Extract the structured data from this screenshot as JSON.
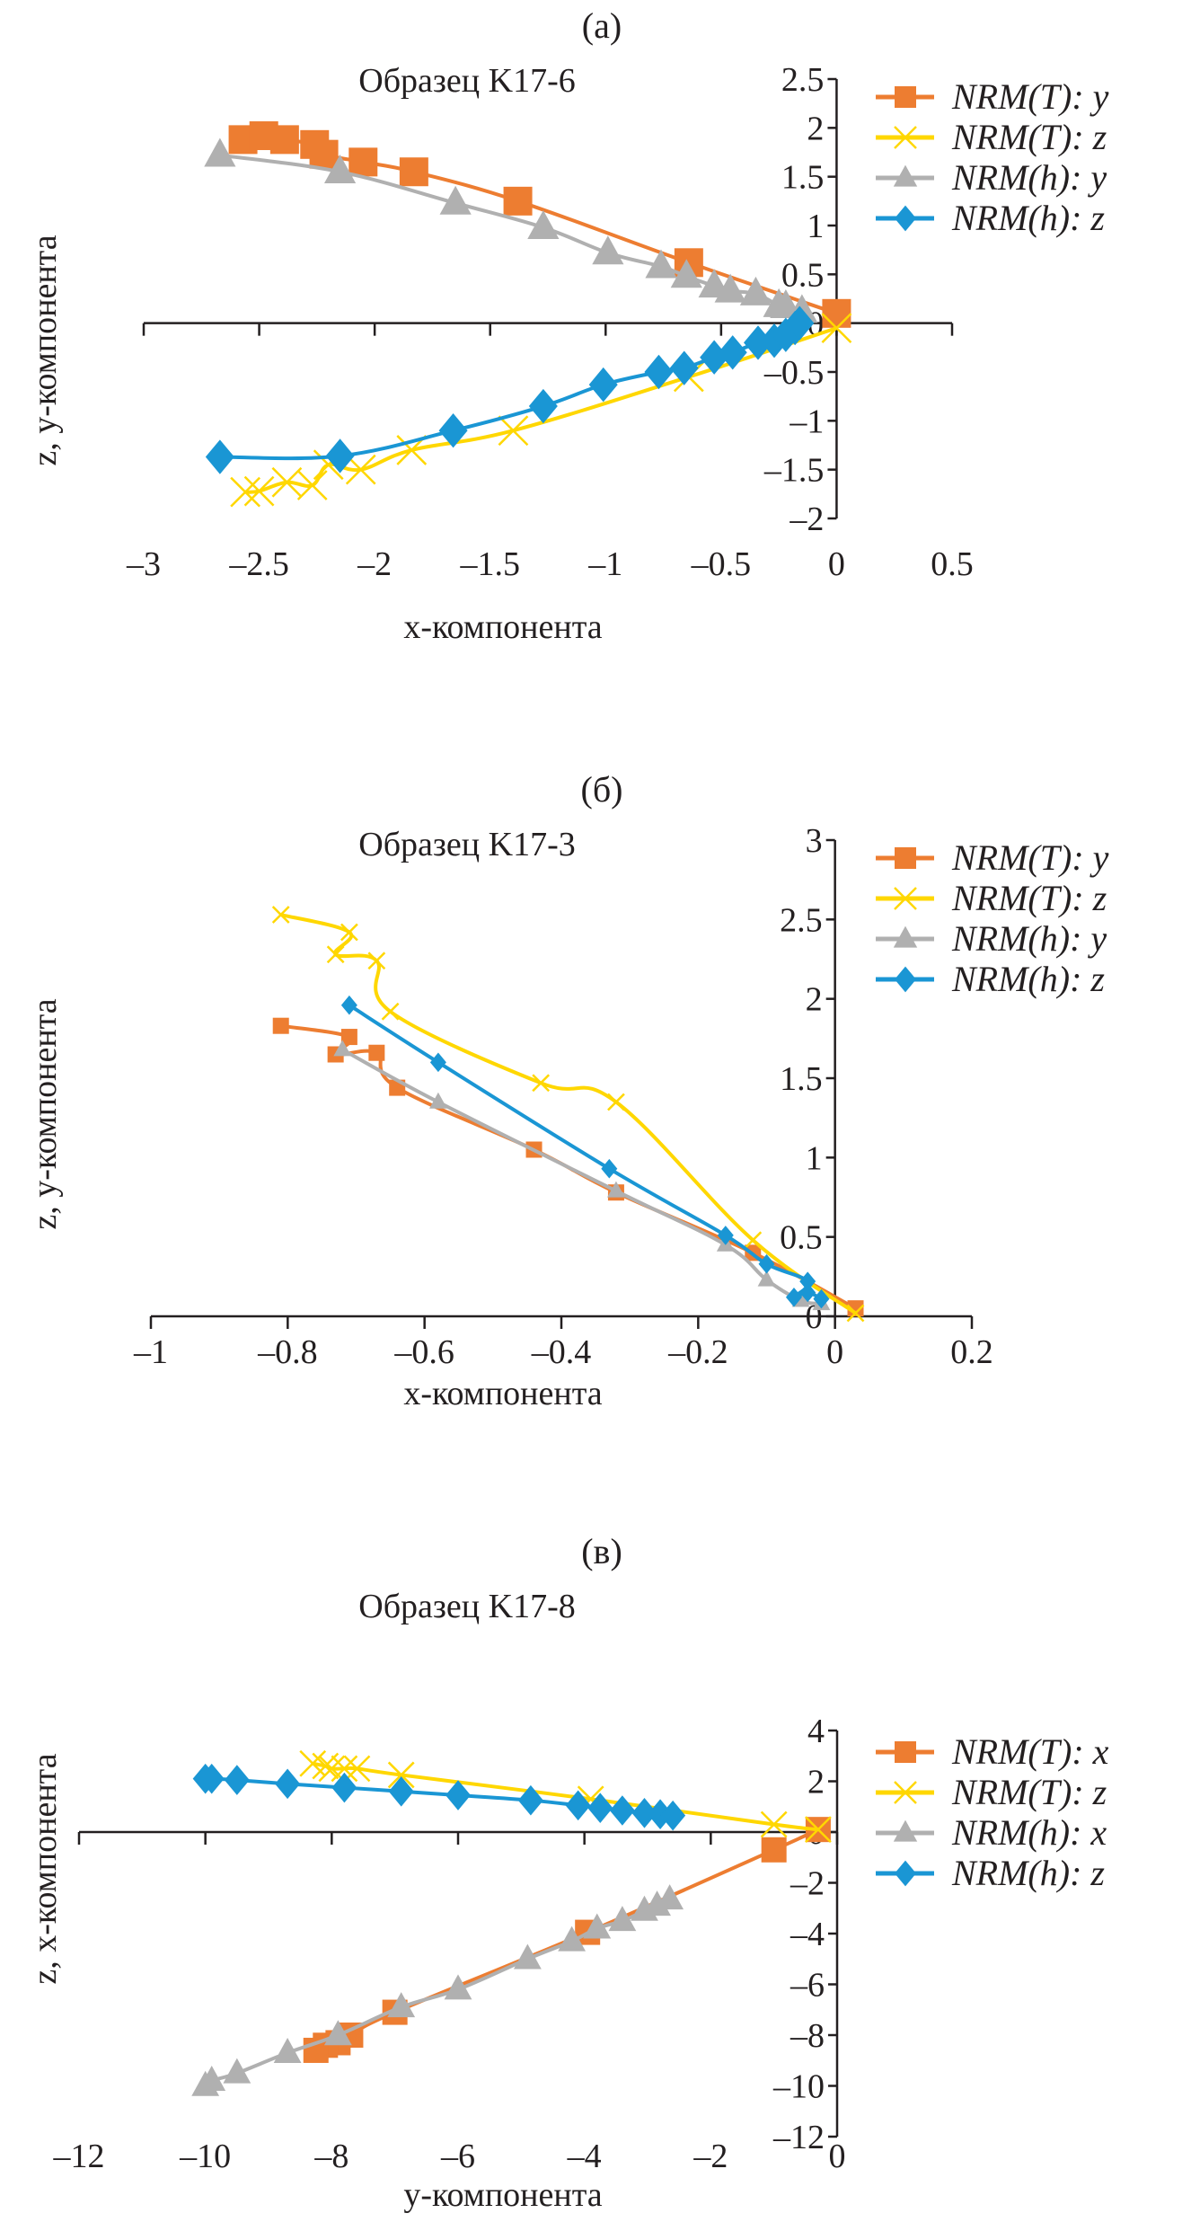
{
  "colors": {
    "NRM_T_first": "#ed7d31",
    "NRM_T_z": "#ffd700",
    "NRM_h_first": "#b0b0b0",
    "NRM_h_z": "#1a96d4",
    "axis": "#231f20"
  },
  "chart_data": [
    {
      "type": "line",
      "panel_label": "(а)",
      "title": "Образец K17-6",
      "xlabel": "x-компонента",
      "ylabel": "z, y-компонента",
      "xlim": [
        -3,
        0.5
      ],
      "ylim": [
        -2,
        2.5
      ],
      "x_ticks": [
        -3,
        -2.5,
        -2,
        -1.5,
        -1,
        -0.5,
        0,
        0.5
      ],
      "x_tick_labels": [
        "–3",
        "–2.5",
        "–2",
        "–1.5",
        "–1",
        "–0.5",
        "0",
        "0.5"
      ],
      "y_ticks": [
        -2,
        -1.5,
        -1,
        -0.5,
        0,
        0.5,
        1,
        1.5,
        2,
        2.5
      ],
      "y_tick_labels": [
        "–2",
        "–1.5",
        "–1",
        "–0.5",
        "0",
        "0.5",
        "1",
        "1.5",
        "2",
        "2.5"
      ],
      "grid": false,
      "legend_position": "top-right",
      "series": [
        {
          "name": "NRM(T): y",
          "marker": "square",
          "color_key": "NRM_T_first",
          "points": [
            [
              -2.57,
              1.88
            ],
            [
              -2.48,
              1.92
            ],
            [
              -2.39,
              1.88
            ],
            [
              -2.26,
              1.83
            ],
            [
              -2.22,
              1.73
            ],
            [
              -2.05,
              1.65
            ],
            [
              -1.83,
              1.55
            ],
            [
              -1.38,
              1.25
            ],
            [
              -0.64,
              0.62
            ],
            [
              0,
              0.1
            ]
          ]
        },
        {
          "name": "NRM(T): z",
          "marker": "cross",
          "color_key": "NRM_T_z",
          "points": [
            [
              -2.56,
              -1.73
            ],
            [
              -2.5,
              -1.72
            ],
            [
              -2.38,
              -1.63
            ],
            [
              -2.27,
              -1.66
            ],
            [
              -2.2,
              -1.45
            ],
            [
              -2.06,
              -1.5
            ],
            [
              -1.84,
              -1.3
            ],
            [
              -1.4,
              -1.1
            ],
            [
              -0.64,
              -0.55
            ],
            [
              0,
              -0.05
            ]
          ]
        },
        {
          "name": "NRM(h): y",
          "marker": "triangle",
          "color_key": "NRM_h_first",
          "points": [
            [
              -2.67,
              1.72
            ],
            [
              -2.15,
              1.55
            ],
            [
              -1.65,
              1.23
            ],
            [
              -1.27,
              0.98
            ],
            [
              -0.99,
              0.72
            ],
            [
              -0.76,
              0.58
            ],
            [
              -0.65,
              0.48
            ],
            [
              -0.53,
              0.38
            ],
            [
              -0.46,
              0.33
            ],
            [
              -0.35,
              0.3
            ],
            [
              -0.25,
              0.18
            ],
            [
              -0.22,
              0.17
            ],
            [
              -0.15,
              0.12
            ]
          ]
        },
        {
          "name": "NRM(h): z",
          "marker": "diamond",
          "color_key": "NRM_h_z",
          "points": [
            [
              -2.67,
              -1.37
            ],
            [
              -2.15,
              -1.36
            ],
            [
              -1.66,
              -1.1
            ],
            [
              -1.27,
              -0.85
            ],
            [
              -1.01,
              -0.63
            ],
            [
              -0.77,
              -0.5
            ],
            [
              -0.66,
              -0.46
            ],
            [
              -0.53,
              -0.35
            ],
            [
              -0.45,
              -0.3
            ],
            [
              -0.34,
              -0.2
            ],
            [
              -0.27,
              -0.18
            ],
            [
              -0.22,
              -0.12
            ],
            [
              -0.18,
              -0.05
            ],
            [
              -0.16,
              0
            ]
          ]
        }
      ]
    },
    {
      "type": "line",
      "panel_label": "(б)",
      "title": "Образец K17-3",
      "xlabel": "x-компонента",
      "ylabel": "z, y-компонента",
      "xlim": [
        -1,
        0.2
      ],
      "ylim": [
        0,
        3
      ],
      "x_ticks": [
        -1,
        -0.8,
        -0.6,
        -0.4,
        -0.2,
        0,
        0.2
      ],
      "x_tick_labels": [
        "–1",
        "–0.8",
        "–0.6",
        "–0.4",
        "–0.2",
        "0",
        "0.2"
      ],
      "y_ticks": [
        0,
        0.5,
        1,
        1.5,
        2,
        2.5,
        3
      ],
      "y_tick_labels": [
        "0",
        "0.5",
        "1",
        "1.5",
        "2",
        "2.5",
        "3"
      ],
      "grid": false,
      "legend_position": "top-right",
      "series": [
        {
          "name": "NRM(T): y",
          "marker": "square",
          "color_key": "NRM_T_first",
          "points": [
            [
              -0.81,
              1.83
            ],
            [
              -0.71,
              1.76
            ],
            [
              -0.73,
              1.65
            ],
            [
              -0.67,
              1.66
            ],
            [
              -0.64,
              1.44
            ],
            [
              -0.44,
              1.05
            ],
            [
              -0.32,
              0.78
            ],
            [
              -0.12,
              0.4
            ],
            [
              0.03,
              0.05
            ]
          ]
        },
        {
          "name": "NRM(T): z",
          "marker": "cross",
          "color_key": "NRM_T_z",
          "points": [
            [
              -0.81,
              2.53
            ],
            [
              -0.71,
              2.42
            ],
            [
              -0.73,
              2.28
            ],
            [
              -0.67,
              2.24
            ],
            [
              -0.65,
              1.92
            ],
            [
              -0.43,
              1.47
            ],
            [
              -0.32,
              1.35
            ],
            [
              -0.12,
              0.48
            ],
            [
              0.03,
              0.02
            ]
          ]
        },
        {
          "name": "NRM(h): y",
          "marker": "triangle",
          "color_key": "NRM_h_first",
          "points": [
            [
              -0.72,
              1.68
            ],
            [
              -0.58,
              1.35
            ],
            [
              -0.32,
              0.79
            ],
            [
              -0.16,
              0.45
            ],
            [
              -0.1,
              0.23
            ],
            [
              -0.05,
              0.1
            ],
            [
              -0.02,
              0.08
            ]
          ]
        },
        {
          "name": "NRM(h): z",
          "marker": "diamond",
          "color_key": "NRM_h_z",
          "points": [
            [
              -0.71,
              1.96
            ],
            [
              -0.58,
              1.6
            ],
            [
              -0.33,
              0.93
            ],
            [
              -0.16,
              0.51
            ],
            [
              -0.1,
              0.33
            ],
            [
              -0.04,
              0.22
            ],
            [
              -0.06,
              0.12
            ],
            [
              -0.04,
              0.15
            ],
            [
              -0.02,
              0.11
            ]
          ]
        }
      ]
    },
    {
      "type": "line",
      "panel_label": "(в)",
      "title": "Образец K17-8",
      "xlabel": "y-компонента",
      "ylabel": "z, x-компонента",
      "xlim": [
        -12,
        0
      ],
      "ylim": [
        -12,
        4
      ],
      "x_ticks": [
        -12,
        -10,
        -8,
        -6,
        -4,
        -2,
        0
      ],
      "x_tick_labels": [
        "–12",
        "–10",
        "–8",
        "–6",
        "–4",
        "–2",
        "0"
      ],
      "y_ticks": [
        -12,
        -10,
        -8,
        -6,
        -4,
        -2,
        0,
        2,
        4
      ],
      "y_tick_labels": [
        "–12",
        "–10",
        "–8",
        "–6",
        "–4",
        "–2",
        "0",
        "2",
        "4"
      ],
      "grid": false,
      "legend_position": "top-right",
      "series": [
        {
          "name": "NRM(T): x",
          "marker": "square",
          "color_key": "NRM_T_first",
          "points": [
            [
              -0.3,
              0.1
            ],
            [
              -1.0,
              -0.7
            ],
            [
              -3.95,
              -3.95
            ],
            [
              -7.0,
              -7.1
            ],
            [
              -7.7,
              -8.0
            ],
            [
              -7.9,
              -8.3
            ],
            [
              -8.1,
              -8.4
            ],
            [
              -8.25,
              -8.6
            ]
          ]
        },
        {
          "name": "NRM(T): z",
          "marker": "cross",
          "color_key": "NRM_T_z",
          "points": [
            [
              -8.3,
              2.7
            ],
            [
              -8.1,
              2.6
            ],
            [
              -8.0,
              2.5
            ],
            [
              -7.8,
              2.5
            ],
            [
              -7.6,
              2.5
            ],
            [
              -6.9,
              2.25
            ],
            [
              -3.9,
              1.3
            ],
            [
              -1.0,
              0.3
            ],
            [
              -0.3,
              0.1
            ]
          ]
        },
        {
          "name": "NRM(h): x",
          "marker": "triangle",
          "color_key": "NRM_h_first",
          "points": [
            [
              -10.0,
              -10.0
            ],
            [
              -9.9,
              -9.8
            ],
            [
              -9.5,
              -9.5
            ],
            [
              -8.7,
              -8.7
            ],
            [
              -7.9,
              -8.0
            ],
            [
              -6.9,
              -6.9
            ],
            [
              -6.0,
              -6.2
            ],
            [
              -4.9,
              -5.0
            ],
            [
              -4.2,
              -4.3
            ],
            [
              -3.8,
              -3.8
            ],
            [
              -3.4,
              -3.5
            ],
            [
              -3.05,
              -3.1
            ],
            [
              -2.85,
              -2.9
            ],
            [
              -2.65,
              -2.65
            ]
          ]
        },
        {
          "name": "NRM(h): z",
          "marker": "diamond",
          "color_key": "NRM_h_z",
          "points": [
            [
              -10.0,
              2.1
            ],
            [
              -9.9,
              2.1
            ],
            [
              -9.5,
              2.05
            ],
            [
              -8.7,
              1.9
            ],
            [
              -7.8,
              1.75
            ],
            [
              -6.9,
              1.6
            ],
            [
              -6.0,
              1.45
            ],
            [
              -4.85,
              1.25
            ],
            [
              -4.1,
              1.05
            ],
            [
              -3.75,
              0.95
            ],
            [
              -3.4,
              0.85
            ],
            [
              -3.05,
              0.75
            ],
            [
              -2.8,
              0.7
            ],
            [
              -2.6,
              0.65
            ]
          ]
        }
      ]
    }
  ]
}
